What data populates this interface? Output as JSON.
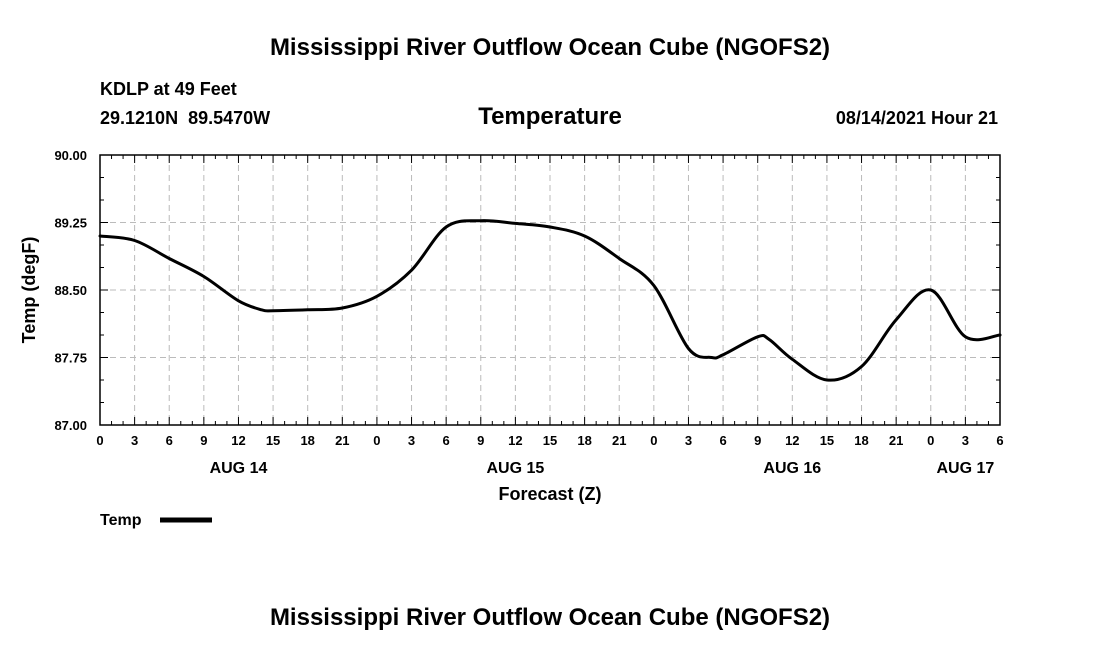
{
  "page_title": "Mississippi River Outflow Ocean Cube (NGOFS2)",
  "footer_title": "Mississippi River Outflow Ocean Cube (NGOFS2)",
  "station": {
    "name": "KDLP at 49 Feet",
    "coords": "29.1210N  89.5470W"
  },
  "forecast_time": "08/14/2021 Hour 21",
  "colors": {
    "line": "#000000",
    "grid": "#bbbbbb",
    "background": "#ffffff"
  },
  "chart_data": {
    "type": "line",
    "title": "Temperature",
    "xlabel": "Forecast (Z)",
    "ylabel": "Temp (degF)",
    "ylim": [
      87.0,
      90.0
    ],
    "yticks": [
      87.0,
      87.75,
      88.5,
      89.25,
      90.0
    ],
    "ytick_labels": [
      "87.00",
      "87.75",
      "88.50",
      "89.25",
      "90.00"
    ],
    "xlim": [
      0,
      78
    ],
    "xticks": [
      0,
      3,
      6,
      9,
      12,
      15,
      18,
      21,
      24,
      27,
      30,
      33,
      36,
      39,
      42,
      45,
      48,
      51,
      54,
      57,
      60,
      63,
      66,
      69,
      72,
      75,
      78
    ],
    "xtick_labels": [
      "0",
      "3",
      "6",
      "9",
      "12",
      "15",
      "18",
      "21",
      "0",
      "3",
      "6",
      "9",
      "12",
      "15",
      "18",
      "21",
      "0",
      "3",
      "6",
      "9",
      "12",
      "15",
      "18",
      "21",
      "0",
      "3",
      "6"
    ],
    "date_labels": [
      {
        "x": 12,
        "label": "AUG 14"
      },
      {
        "x": 36,
        "label": "AUG 15"
      },
      {
        "x": 60,
        "label": "AUG 16"
      },
      {
        "x": 75,
        "label": "AUG 17"
      }
    ],
    "grid": true,
    "legend": {
      "position": "bottom-left",
      "entries": [
        "Temp"
      ]
    },
    "series": [
      {
        "name": "Temp",
        "x": [
          0,
          3,
          6,
          9,
          12,
          14,
          15,
          18,
          21,
          24,
          27,
          30,
          33,
          36,
          39,
          42,
          45,
          48,
          51,
          53,
          54,
          57,
          58,
          60,
          63,
          66,
          69,
          72,
          75,
          78
        ],
        "y": [
          89.1,
          89.05,
          88.85,
          88.65,
          88.38,
          88.28,
          88.27,
          88.28,
          88.3,
          88.43,
          88.72,
          89.2,
          89.27,
          89.24,
          89.2,
          89.1,
          88.85,
          88.55,
          87.85,
          87.75,
          87.78,
          87.98,
          87.95,
          87.73,
          87.5,
          87.65,
          88.17,
          88.5,
          87.98,
          88.0
        ]
      }
    ]
  }
}
